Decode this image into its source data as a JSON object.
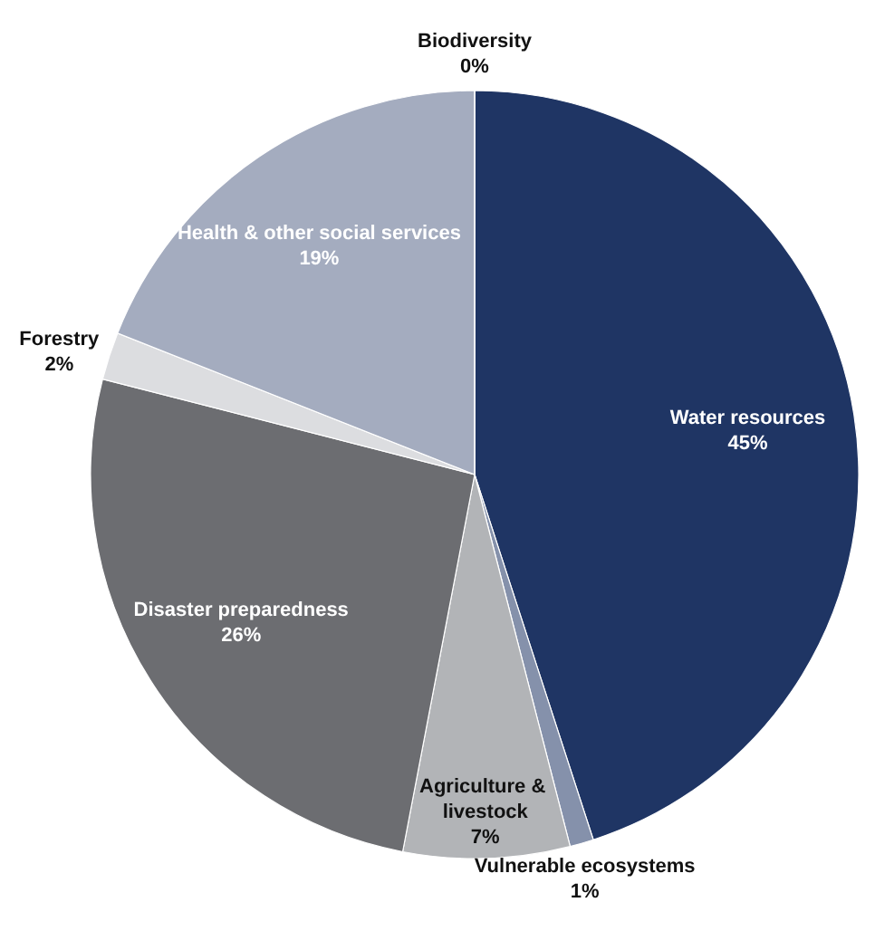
{
  "chart_data": {
    "type": "pie",
    "categories": [
      "Water resources",
      "Vulnerable ecosystems",
      "Agriculture & livestock",
      "Disaster preparedness",
      "Forestry",
      "Health & other social services",
      "Biodiversity"
    ],
    "values": [
      45,
      1,
      7,
      26,
      2,
      19,
      0
    ],
    "colors": [
      "#1f3564",
      "#8591ab",
      "#b2b4b7",
      "#6c6d71",
      "#dcdde0",
      "#a4acbf",
      "#7f8da8"
    ],
    "value_labels": [
      "45%",
      "1%",
      "7%",
      "26%",
      "2%",
      "19%",
      "0%"
    ]
  }
}
